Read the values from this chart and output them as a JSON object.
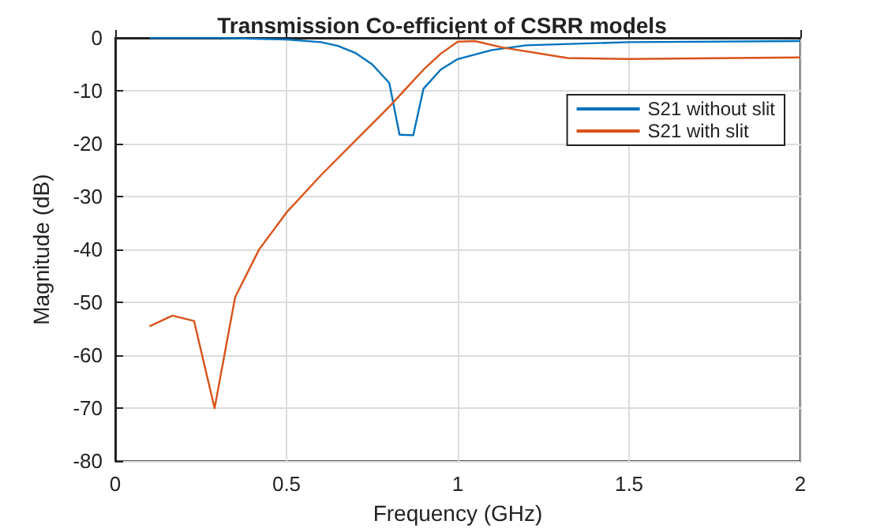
{
  "chart_data": {
    "type": "line",
    "title": "Transmission Co-efficient of CSRR models",
    "xlabel": "Frequency (GHz)",
    "ylabel": "Magnitude (dB)",
    "xlim": [
      0,
      2
    ],
    "xticks": [
      0,
      0.5,
      1,
      1.5,
      2
    ],
    "ylim": [
      -80,
      0
    ],
    "yticks": [
      -80,
      -70,
      -60,
      -50,
      -40,
      -30,
      -20,
      -10,
      0
    ],
    "grid": true,
    "legend": "top right",
    "marker": "none",
    "line_style": "solid",
    "series": [
      {
        "name": "S21 without slit",
        "color": "#0072bd",
        "x": [
          0.1,
          0.3,
          0.5,
          0.6,
          0.65,
          0.7,
          0.75,
          0.8,
          0.83,
          0.87,
          0.9,
          0.95,
          1.0,
          1.1,
          1.2,
          1.5,
          2.0
        ],
        "values": [
          0,
          0,
          -0.3,
          -0.8,
          -1.5,
          -2.8,
          -5,
          -8.5,
          -18.3,
          -18.4,
          -9.6,
          -6,
          -4,
          -2.3,
          -1.4,
          -0.8,
          -0.6
        ]
      },
      {
        "name": "S21 with slit",
        "color": "#d95319",
        "x": [
          0.1,
          0.167,
          0.23,
          0.29,
          0.35,
          0.42,
          0.5,
          0.6,
          0.7,
          0.8,
          0.9,
          0.95,
          1.0,
          1.05,
          1.13,
          1.32,
          1.5,
          2.0
        ],
        "values": [
          -54.5,
          -52.5,
          -53.5,
          -70,
          -49,
          -40,
          -33,
          -26,
          -19.5,
          -13,
          -6,
          -3,
          -0.7,
          -0.6,
          -1.8,
          -3.8,
          -4,
          -3.7
        ]
      }
    ]
  }
}
